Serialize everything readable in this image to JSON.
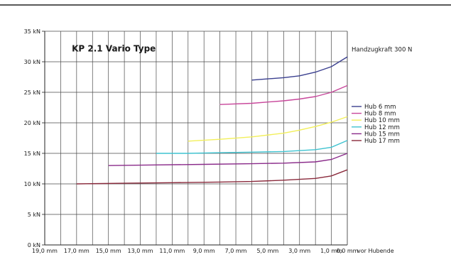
{
  "chart_data": {
    "type": "line",
    "title": "KP 2.1 Vario Type",
    "annotation": "Handzugkraft 300 N",
    "xlabel": "vor Hubende",
    "x_reversed": true,
    "xlim": [
      19.0,
      0.0
    ],
    "ylim": [
      0,
      35
    ],
    "grid": true,
    "legend_position": "right",
    "x_ticks": [
      "19,0 mm",
      "17,0 mm",
      "15,0 mm",
      "13,0 mm",
      "11,0 mm",
      "9,0 mm",
      "7,0 mm",
      "5,0 mm",
      "3,0 mm",
      "1,0 mm",
      "0,0 mm"
    ],
    "x_tick_values": [
      19,
      17,
      15,
      13,
      11,
      9,
      7,
      5,
      3,
      1,
      0
    ],
    "y_ticks": [
      "0 kN",
      "5 kN",
      "10 kN",
      "15 kN",
      "20 kN",
      "25 kN",
      "30 kN",
      "35 kN"
    ],
    "y_tick_values": [
      0,
      5,
      10,
      15,
      20,
      25,
      30,
      35
    ],
    "series": [
      {
        "name": "Hub 6 mm",
        "color": "#3a3f8f",
        "points": [
          [
            6.0,
            27.0
          ],
          [
            5.0,
            27.2
          ],
          [
            4.0,
            27.4
          ],
          [
            3.0,
            27.7
          ],
          [
            2.0,
            28.3
          ],
          [
            1.0,
            29.2
          ],
          [
            0.0,
            30.8
          ]
        ]
      },
      {
        "name": "Hub 8 mm",
        "color": "#c8479b",
        "points": [
          [
            8.0,
            23.0
          ],
          [
            6.0,
            23.2
          ],
          [
            4.0,
            23.6
          ],
          [
            3.0,
            23.9
          ],
          [
            2.0,
            24.3
          ],
          [
            1.0,
            25.0
          ],
          [
            0.0,
            26.1
          ]
        ]
      },
      {
        "name": "Hub 10 mm",
        "color": "#f2ef5a",
        "points": [
          [
            10.0,
            17.0
          ],
          [
            8.0,
            17.3
          ],
          [
            6.0,
            17.7
          ],
          [
            4.0,
            18.3
          ],
          [
            3.0,
            18.8
          ],
          [
            2.0,
            19.4
          ],
          [
            1.0,
            20.1
          ],
          [
            0.0,
            21.0
          ]
        ]
      },
      {
        "name": "Hub 12 mm",
        "color": "#3fc3d0",
        "points": [
          [
            12.0,
            15.0
          ],
          [
            10.0,
            15.0
          ],
          [
            8.0,
            15.1
          ],
          [
            6.0,
            15.2
          ],
          [
            4.0,
            15.3
          ],
          [
            2.0,
            15.6
          ],
          [
            1.0,
            16.0
          ],
          [
            0.0,
            17.1
          ]
        ]
      },
      {
        "name": "Hub 15 mm",
        "color": "#8a2b8a",
        "points": [
          [
            15.0,
            13.0
          ],
          [
            12.0,
            13.1
          ],
          [
            9.0,
            13.2
          ],
          [
            6.0,
            13.3
          ],
          [
            4.0,
            13.4
          ],
          [
            2.0,
            13.6
          ],
          [
            1.0,
            14.0
          ],
          [
            0.0,
            15.0
          ]
        ]
      },
      {
        "name": "Hub 17 mm",
        "color": "#8a2a3c",
        "points": [
          [
            17.0,
            10.0
          ],
          [
            14.0,
            10.1
          ],
          [
            11.0,
            10.2
          ],
          [
            8.0,
            10.3
          ],
          [
            6.0,
            10.4
          ],
          [
            4.0,
            10.6
          ],
          [
            2.0,
            10.9
          ],
          [
            1.0,
            11.3
          ],
          [
            0.0,
            12.3
          ]
        ]
      }
    ]
  }
}
